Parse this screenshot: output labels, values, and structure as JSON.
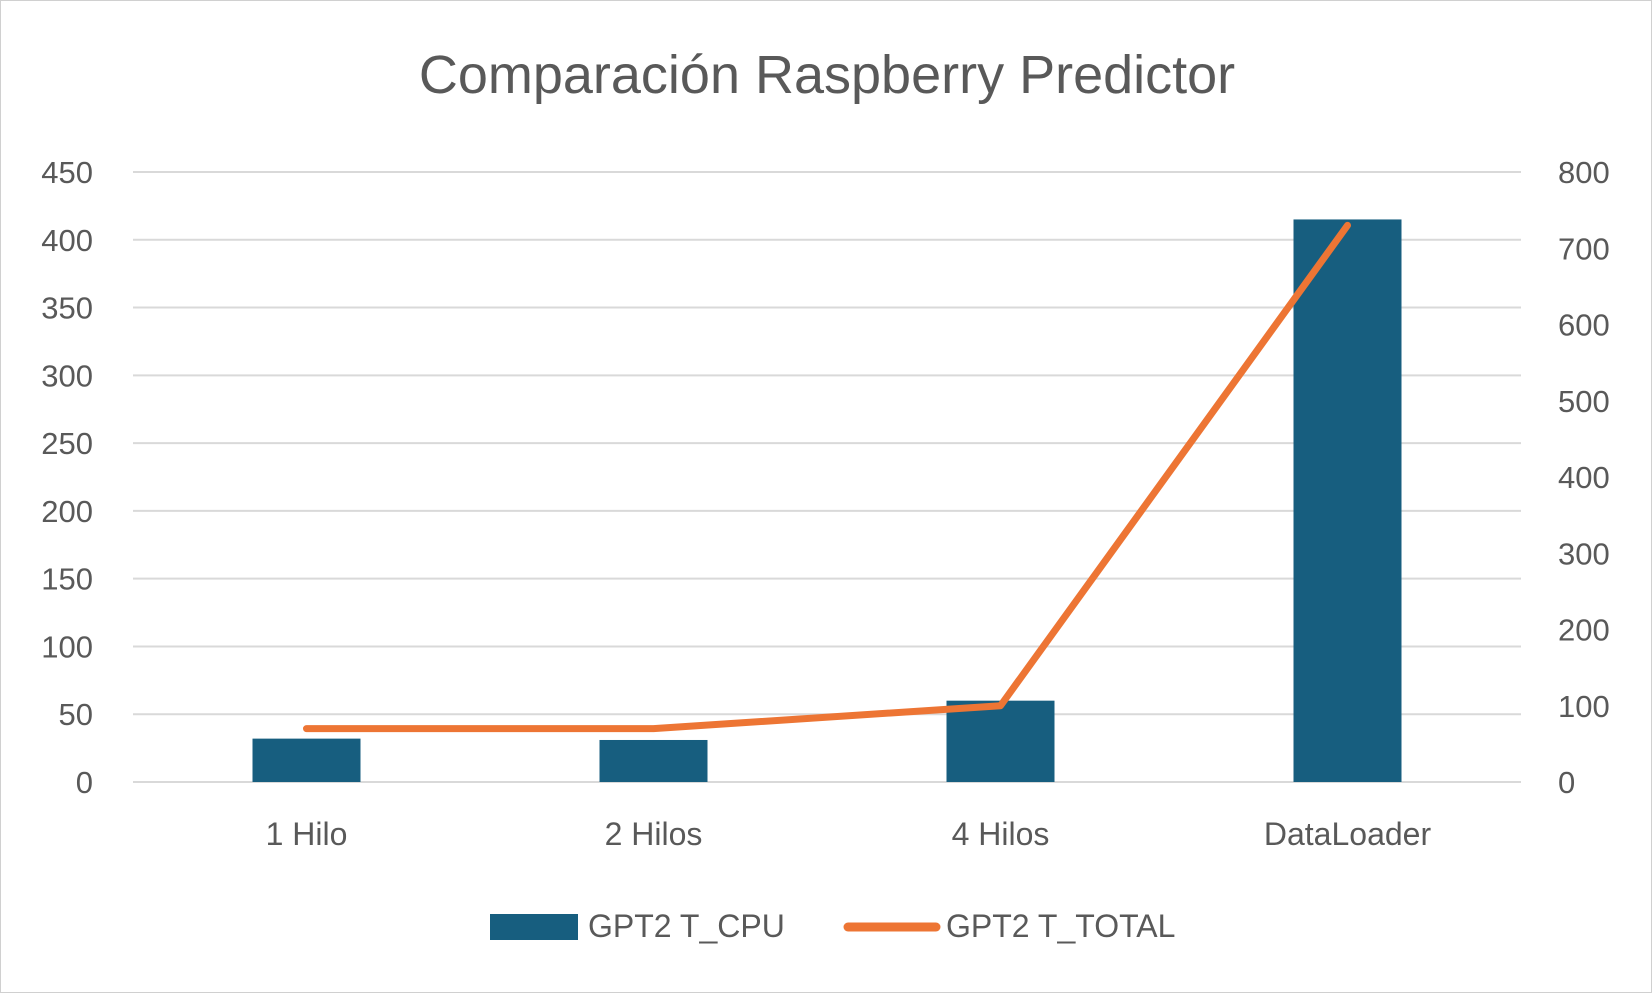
{
  "chart_data": {
    "type": "bar",
    "title": "Comparación Raspberry Predictor",
    "categories": [
      "1 Hilo",
      "2 Hilos",
      "4 Hilos",
      "DataLoader"
    ],
    "series": [
      {
        "name": "GPT2 T_CPU",
        "type": "bar",
        "axis": "left",
        "color": "#175e7f",
        "values": [
          32,
          31,
          60,
          415
        ]
      },
      {
        "name": "GPT2 T_TOTAL",
        "type": "line",
        "axis": "right",
        "color": "#ed7534",
        "values": [
          70,
          70,
          100,
          730
        ]
      }
    ],
    "y_left": {
      "ylim": [
        0,
        450
      ],
      "ticks": [
        "0",
        "50",
        "100",
        "150",
        "200",
        "250",
        "300",
        "350",
        "400",
        "450"
      ]
    },
    "y_right": {
      "ylim": [
        0,
        800
      ],
      "ticks": [
        "0",
        "100",
        "200",
        "300",
        "400",
        "500",
        "600",
        "700",
        "800"
      ]
    },
    "grid": true,
    "legend": "bottom"
  }
}
